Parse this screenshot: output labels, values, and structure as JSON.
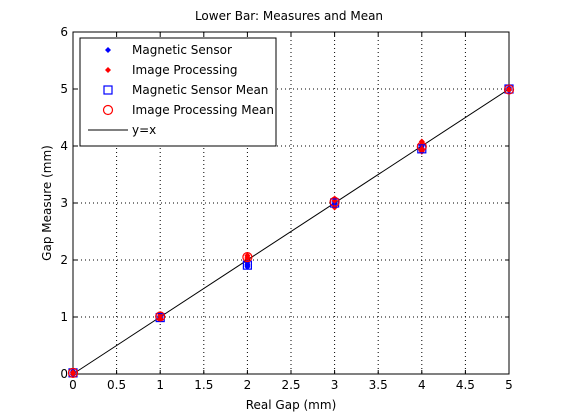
{
  "chart_data": {
    "type": "scatter",
    "title": "Lower Bar: Measures and Mean",
    "xlabel": "Real Gap (mm)",
    "ylabel": "Gap Measure (mm)",
    "xlim": [
      0,
      5
    ],
    "ylim": [
      0,
      6
    ],
    "xticks": [
      "0",
      "0.5",
      "1",
      "1.5",
      "2",
      "2.5",
      "3",
      "3.5",
      "4",
      "4.5",
      "5"
    ],
    "yticks": [
      "0",
      "1",
      "2",
      "3",
      "4",
      "5",
      "6"
    ],
    "grid": true,
    "legend_position": "top-left",
    "series": [
      {
        "name": "Magnetic Sensor",
        "marker": "dot",
        "color": "#0000ff",
        "points": [
          [
            0,
            0.02
          ],
          [
            0,
            0.05
          ],
          [
            0,
            -0.01
          ],
          [
            1,
            0.98
          ],
          [
            1,
            1.02
          ],
          [
            1,
            1.0
          ],
          [
            1,
            0.96
          ],
          [
            2,
            1.9
          ],
          [
            2,
            1.95
          ],
          [
            2,
            1.88
          ],
          [
            2,
            1.92
          ],
          [
            3,
            3.0
          ],
          [
            3,
            3.03
          ],
          [
            3,
            2.98
          ],
          [
            4,
            3.92
          ],
          [
            4,
            3.96
          ],
          [
            4,
            4.0
          ],
          [
            4,
            3.94
          ],
          [
            5,
            4.98
          ],
          [
            5,
            5.0
          ],
          [
            5,
            5.02
          ]
        ]
      },
      {
        "name": "Image Processing",
        "marker": "dot",
        "color": "#ff0000",
        "points": [
          [
            0,
            0.0
          ],
          [
            0,
            0.03
          ],
          [
            1,
            1.05
          ],
          [
            1,
            0.97
          ],
          [
            1,
            1.02
          ],
          [
            2,
            2.08
          ],
          [
            2,
            2.02
          ],
          [
            2,
            2.05
          ],
          [
            3,
            3.08
          ],
          [
            3,
            2.92
          ],
          [
            3,
            3.04
          ],
          [
            4,
            4.08
          ],
          [
            4,
            3.95
          ],
          [
            4,
            4.03
          ],
          [
            4,
            3.9
          ],
          [
            5,
            5.0
          ],
          [
            5,
            4.98
          ]
        ]
      },
      {
        "name": "Magnetic Sensor Mean",
        "marker": "square",
        "color": "#0000ff",
        "points": [
          [
            0,
            0.02
          ],
          [
            1,
            0.99
          ],
          [
            2,
            1.91
          ],
          [
            3,
            3.0
          ],
          [
            4,
            3.95
          ],
          [
            5,
            5.0
          ]
        ]
      },
      {
        "name": "Image Processing Mean",
        "marker": "circle",
        "color": "#ff0000",
        "points": [
          [
            0,
            0.02
          ],
          [
            1,
            1.01
          ],
          [
            2,
            2.05
          ],
          [
            3,
            3.02
          ],
          [
            4,
            3.99
          ],
          [
            5,
            4.99
          ]
        ]
      },
      {
        "name": "y=x",
        "marker": "line",
        "color": "#000000",
        "points": [
          [
            0,
            0
          ],
          [
            5,
            5
          ]
        ]
      }
    ]
  }
}
